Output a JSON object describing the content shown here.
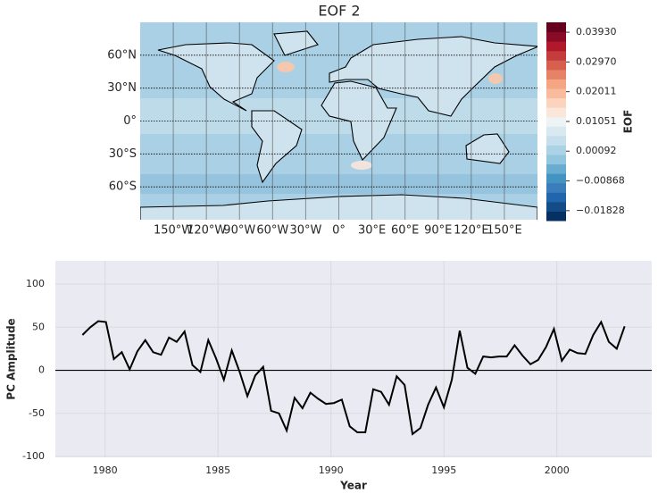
{
  "chart_data": [
    {
      "type": "map",
      "title": "EOF 2",
      "xlim": [
        -180,
        180
      ],
      "ylim": [
        -90,
        90
      ],
      "xticks": [
        {
          "value": -150,
          "label": "150°W"
        },
        {
          "value": -120,
          "label": "120°W"
        },
        {
          "value": -90,
          "label": "90°W"
        },
        {
          "value": -60,
          "label": "60°W"
        },
        {
          "value": -30,
          "label": "30°W"
        },
        {
          "value": 0,
          "label": "0°"
        },
        {
          "value": 30,
          "label": "30°E"
        },
        {
          "value": 60,
          "label": "60°E"
        },
        {
          "value": 90,
          "label": "90°E"
        },
        {
          "value": 120,
          "label": "120°E"
        },
        {
          "value": 150,
          "label": "150°E"
        }
      ],
      "yticks": [
        {
          "value": 60,
          "label": "60°N"
        },
        {
          "value": 30,
          "label": "30°N"
        },
        {
          "value": 0,
          "label": "0°"
        },
        {
          "value": -30,
          "label": "30°S"
        },
        {
          "value": -60,
          "label": "60°S"
        }
      ],
      "grid": true,
      "colorbar": {
        "label": "EOF",
        "lim": [
          -0.0215,
          0.0425
        ],
        "ticks": [
          {
            "value": 0.0393,
            "label": "0.03930"
          },
          {
            "value": 0.0297,
            "label": "0.02970"
          },
          {
            "value": 0.02011,
            "label": "0.02011"
          },
          {
            "value": 0.01051,
            "label": "0.01051"
          },
          {
            "value": 0.00092,
            "label": "0.00092"
          },
          {
            "value": -0.00868,
            "label": "−0.00868"
          },
          {
            "value": -0.01828,
            "label": "−0.01828"
          }
        ],
        "colors": [
          "#053061",
          "#134c87",
          "#2166ac",
          "#3a7dba",
          "#4393c3",
          "#6aacd0",
          "#92c5de",
          "#abd2e5",
          "#c5dfec",
          "#d9e9f1",
          "#eef3f6",
          "#fbe6da",
          "#fcd3bc",
          "#f9bb9e",
          "#f4a582",
          "#e58267",
          "#d6604d",
          "#c43c3c",
          "#b2182b",
          "#8a0b25",
          "#67001f"
        ]
      }
    },
    {
      "type": "line",
      "xlabel": "Year",
      "ylabel": "PC Amplitude",
      "xlim": [
        1977.8,
        2004.2
      ],
      "ylim": [
        -101,
        127
      ],
      "xticks": [
        1980,
        1985,
        1990,
        1995,
        2000
      ],
      "yticks": [
        -100,
        -50,
        0,
        50,
        100
      ],
      "grid": true,
      "hline": 0,
      "x": [
        1979.0,
        1979.35,
        1979.7,
        1980.04,
        1980.39,
        1980.74,
        1981.09,
        1981.43,
        1981.78,
        1982.13,
        1982.48,
        1982.83,
        1983.17,
        1983.52,
        1983.87,
        1984.22,
        1984.57,
        1984.91,
        1985.26,
        1985.61,
        1985.96,
        1986.3,
        1986.65,
        1987.0,
        1987.35,
        1987.7,
        1988.04,
        1988.39,
        1988.74,
        1989.09,
        1989.43,
        1989.78,
        1990.13,
        1990.48,
        1990.83,
        1991.17,
        1991.52,
        1991.87,
        1992.22,
        1992.57,
        1992.91,
        1993.26,
        1993.61,
        1993.96,
        1994.3,
        1994.65,
        1995.0,
        1995.35,
        1995.7,
        1996.04,
        1996.39,
        1996.74,
        1997.09,
        1997.43,
        1997.78,
        1998.13,
        1998.48,
        1998.83,
        1999.17,
        1999.52,
        1999.87,
        2000.22,
        2000.57,
        2000.91,
        2001.26,
        2001.61,
        2001.96,
        2002.3,
        2002.65,
        2003.0
      ],
      "series": [
        {
          "color": "#000000",
          "values": [
            41,
            50,
            57,
            56,
            13,
            21,
            1,
            22,
            35,
            21,
            18,
            38,
            33,
            45,
            6,
            -2,
            35,
            14,
            -11,
            23,
            -2,
            -30,
            -6,
            4,
            -47,
            -50,
            -70,
            -32,
            -44,
            -26,
            -33,
            -39,
            -38,
            -34,
            -65,
            -72,
            -72,
            -22,
            -25,
            -40,
            -7,
            -17,
            -74,
            -67,
            -40,
            -20,
            -43,
            -11,
            46,
            3,
            -4,
            16,
            15,
            16,
            16,
            29,
            17,
            7,
            12,
            27,
            48,
            11,
            24,
            20,
            19,
            41,
            56,
            33,
            25,
            51
          ]
        }
      ]
    }
  ]
}
